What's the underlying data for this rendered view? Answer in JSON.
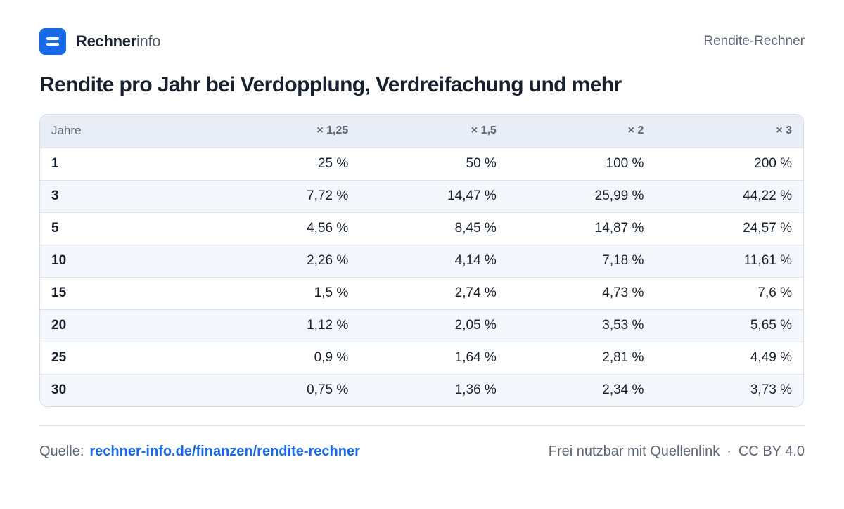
{
  "header": {
    "brand_strong": "Rechner",
    "brand_light": "info",
    "right_label": "Rendite-Rechner"
  },
  "title": "Rendite pro Jahr bei Verdopplung, Verdreifachung und mehr",
  "table": {
    "headers": [
      "Jahre",
      "× 1,25",
      "× 1,5",
      "× 2",
      "× 3"
    ],
    "rows": [
      [
        "1",
        "25 %",
        "50 %",
        "100 %",
        "200 %"
      ],
      [
        "3",
        "7,72 %",
        "14,47 %",
        "25,99 %",
        "44,22 %"
      ],
      [
        "5",
        "4,56 %",
        "8,45 %",
        "14,87 %",
        "24,57 %"
      ],
      [
        "10",
        "2,26 %",
        "4,14 %",
        "7,18 %",
        "11,61 %"
      ],
      [
        "15",
        "1,5 %",
        "2,74 %",
        "4,73 %",
        "7,6 %"
      ],
      [
        "20",
        "1,12 %",
        "2,05 %",
        "3,53 %",
        "5,65 %"
      ],
      [
        "25",
        "0,9 %",
        "1,64 %",
        "2,81 %",
        "4,49 %"
      ],
      [
        "30",
        "0,75 %",
        "1,36 %",
        "2,34 %",
        "3,73 %"
      ]
    ]
  },
  "footer": {
    "source_label": "Quelle:",
    "source_link": "rechner-info.de/finanzen/rendite-rechner",
    "license_text": "Frei nutzbar mit Quellenlink",
    "separator": "·",
    "license": "CC BY 4.0"
  },
  "colors": {
    "accent": "#1769e8",
    "text": "#16202e",
    "muted": "#5b6576",
    "header_bg": "#e9eef6",
    "stripe_bg": "#f3f6fb"
  },
  "icons": {
    "logo": "rechnerinfo-logo-icon"
  }
}
